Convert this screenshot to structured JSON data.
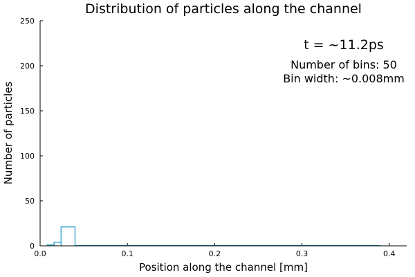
{
  "chart_data": {
    "type": "bar",
    "title": "Distribution of particles along the channel",
    "xlabel": "Position along the channel [mm]",
    "ylabel": "Number of particles",
    "xlim": [
      0,
      0.42
    ],
    "ylim": [
      0,
      250
    ],
    "xticks": [
      0.0,
      0.1,
      0.2,
      0.3,
      0.4
    ],
    "xtick_labels": [
      "0.0",
      "0.1",
      "0.2",
      "0.3",
      "0.4"
    ],
    "yticks": [
      0,
      50,
      100,
      150,
      200,
      250
    ],
    "ytick_labels": [
      "0",
      "50",
      "100",
      "150",
      "200",
      "250"
    ],
    "grid": false,
    "legend": false,
    "series_color": "#2a9ec9",
    "bin_width": 0.008,
    "bins": [
      {
        "x0": 0.008,
        "x1": 0.016,
        "count": 1
      },
      {
        "x0": 0.016,
        "x1": 0.024,
        "count": 4
      },
      {
        "x0": 0.024,
        "x1": 0.04,
        "count": 21
      },
      {
        "x0": 0.04,
        "x1": 0.39,
        "count": 0
      }
    ],
    "annotations": {
      "time": "t = ~11.2ps",
      "num_bins": "Number of bins: 50",
      "bin_width": "Bin width: ~0.008mm"
    }
  }
}
